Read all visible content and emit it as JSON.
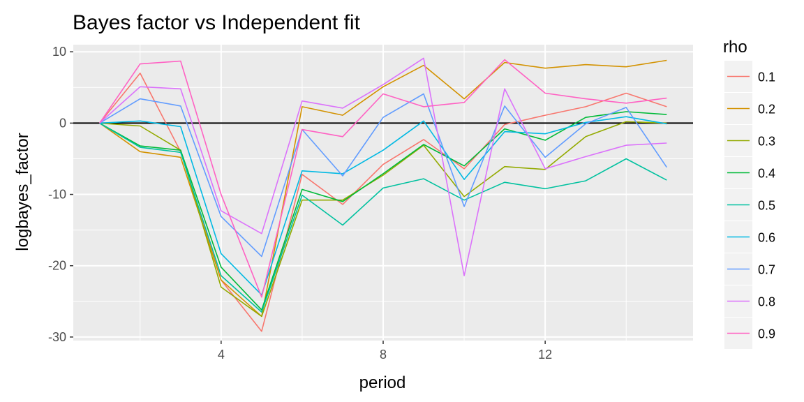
{
  "chart_data": {
    "type": "line",
    "title": "Bayes factor vs Independent fit",
    "xlabel": "period",
    "ylabel": "logbayes_factor",
    "xlim": [
      0.35,
      15.65
    ],
    "ylim": [
      -30.5,
      11
    ],
    "x_ticks": [
      4,
      8,
      12
    ],
    "y_ticks": [
      10,
      0,
      -10,
      -20,
      -30
    ],
    "y_tick_labels": [
      "10",
      "0",
      "-10",
      "-20",
      "-30"
    ],
    "x_tick_labels": [
      "4",
      "8",
      "12"
    ],
    "grid": true,
    "hline": 0,
    "legend": {
      "title": "rho",
      "position": "right"
    },
    "x": [
      1,
      2,
      3,
      4,
      5,
      6,
      7,
      8,
      9,
      10,
      11,
      12,
      13,
      14,
      15
    ],
    "series": [
      {
        "name": "0.1",
        "color": "#F8766D",
        "values": [
          0,
          7,
          -4,
          -22,
          -29.2,
          -7.2,
          -11.4,
          -5.8,
          -2.3,
          -6.4,
          -0.2,
          1.1,
          2.3,
          4.2,
          2.3
        ]
      },
      {
        "name": "0.2",
        "color": "#D39200",
        "values": [
          0,
          -4,
          -4.8,
          -22,
          -27.1,
          2.3,
          1.1,
          5.1,
          8.1,
          3.4,
          8.5,
          7.7,
          8.2,
          7.9,
          8.8
        ]
      },
      {
        "name": "0.3",
        "color": "#93AA00",
        "values": [
          0,
          -0.4,
          -3.8,
          -23,
          -27.1,
          -10.8,
          -10.8,
          -7.3,
          -3.1,
          -10.3,
          -6.1,
          -6.5,
          -1.9,
          0.2,
          0
        ]
      },
      {
        "name": "0.4",
        "color": "#00BA38",
        "values": [
          0,
          -3.2,
          -3.8,
          -20.2,
          -26.2,
          -9.3,
          -11,
          -7.1,
          -3,
          -6,
          -0.8,
          -2.4,
          0.8,
          1.6,
          1.2
        ]
      },
      {
        "name": "0.5",
        "color": "#00C19F",
        "values": [
          0,
          -3.4,
          -4.1,
          -21.4,
          -26.5,
          -10.1,
          -14.3,
          -9.1,
          -7.8,
          -10.8,
          -8.3,
          -9.2,
          -8.1,
          -5,
          -8
        ]
      },
      {
        "name": "0.6",
        "color": "#00B9E3",
        "values": [
          0,
          0.3,
          -0.5,
          -18.3,
          -24.1,
          -6.7,
          -7.1,
          -3.8,
          0.3,
          -7.9,
          -1.2,
          -1.5,
          0.1,
          0.9,
          -0.1
        ]
      },
      {
        "name": "0.7",
        "color": "#619CFF",
        "values": [
          0,
          3.4,
          2.4,
          -13.1,
          -18.7,
          -0.9,
          -7.4,
          0.8,
          4.1,
          -11.7,
          2.4,
          -4.8,
          -0.1,
          2.2,
          -6.2
        ]
      },
      {
        "name": "0.8",
        "color": "#DB72FB",
        "values": [
          0,
          5.1,
          4.8,
          -12.3,
          -15.5,
          3.1,
          2.1,
          5.4,
          9.1,
          -21.4,
          4.8,
          -6.4,
          -4.7,
          -3.1,
          -2.8
        ]
      },
      {
        "name": "0.9",
        "color": "#FF61C3",
        "values": [
          0,
          8.3,
          8.7,
          -10,
          -24.4,
          -0.9,
          -1.9,
          4.1,
          2.3,
          2.9,
          8.9,
          4.2,
          3.4,
          2.8,
          3.5
        ]
      }
    ]
  }
}
